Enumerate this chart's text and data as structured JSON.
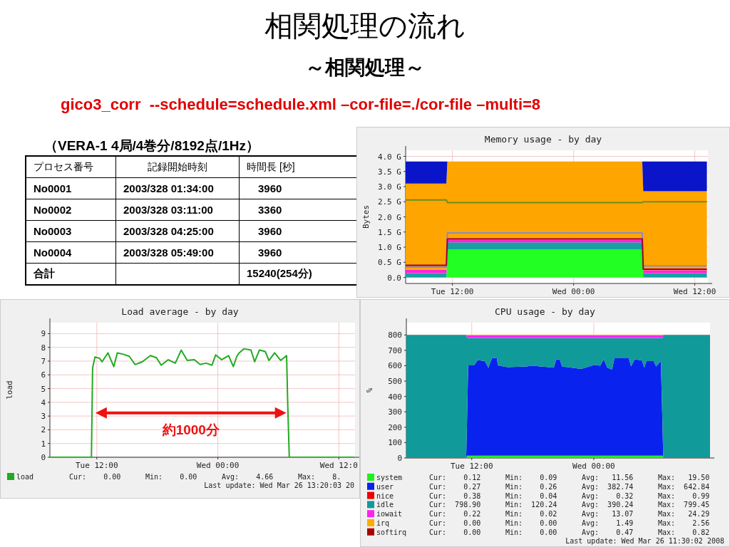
{
  "chart_data": [
    {
      "type": "other",
      "title": "相関処理の流れ",
      "subtitle": "～相関処理～",
      "annotations": [
        "gico3_corr  --schedule=schedule.xml –cor-file=./cor-file –multi=8",
        "（VERA-1 4局/4巻分/8192点/1Hz）",
        "プロセス番号",
        "記録開始時刻",
        "時間長 [秒]",
        "No0001",
        "2003/328 01:34:00",
        "3960",
        "No0002",
        "2003/328 03:11:00",
        "3360",
        "No0003",
        "2003/328 04:25:00",
        "3960",
        "No0004",
        "2003/328 05:49:00",
        "3960",
        "合計",
        "15240(254分)"
      ]
    },
    {
      "type": "area",
      "stacked": true,
      "title": "Memory usage - by day",
      "ylabel": "Bytes",
      "grid": true,
      "x": [
        "2008-03-25T07:22",
        "2008-03-25T11:24",
        "2008-03-25T11:30",
        "2008-03-26T06:48",
        "2008-03-26T06:54",
        "2008-03-26T13:12"
      ],
      "xlim": [
        "2008-03-25T07:22",
        "2008-03-26T13:18"
      ],
      "xticks": [
        {
          "value": "2008-03-25T12:00",
          "label": "Tue 12:00"
        },
        {
          "value": "2008-03-26T00:00",
          "label": "Wed 00:00"
        },
        {
          "value": "2008-03-26T12:00",
          "label": "Wed 12:00"
        }
      ],
      "ylim": [
        -0.2,
        4.2
      ],
      "yticks": [
        {
          "value": 0,
          "label": "0.0"
        },
        {
          "value": 0.5,
          "label": "0.5 G"
        },
        {
          "value": 1,
          "label": "1.0 G"
        },
        {
          "value": 1.5,
          "label": "1.5 G"
        },
        {
          "value": 2,
          "label": "2.0 G"
        },
        {
          "value": 2.5,
          "label": "2.5 G"
        },
        {
          "value": 3,
          "label": "3.0 G"
        },
        {
          "value": 3.5,
          "label": "3.5 G"
        },
        {
          "value": 4,
          "label": "4.0 G"
        }
      ],
      "series": [
        {
          "color": "#22ff22",
          "values": [
            0,
            0,
            0.93,
            0.93,
            0,
            0
          ]
        },
        {
          "color": "#17a0a0",
          "values": [
            0.14,
            0.14,
            0.23,
            0.23,
            0.14,
            0.14
          ]
        },
        {
          "color": "#ff22dd",
          "values": [
            0.12,
            0.12,
            0.09,
            0.09,
            0.1,
            0.1
          ]
        },
        {
          "color": "#ffa500",
          "values": [
            2.84,
            2.84,
            2.58,
            2.58,
            2.61,
            2.61
          ]
        },
        {
          "color": "#0a14c8",
          "values": [
            0.73,
            0.73,
            0,
            0,
            0.98,
            0.98
          ]
        },
        {
          "type": "line",
          "color": "#8c8cc0",
          "values": [
            0.34,
            0.34,
            1.47,
            1.47,
            0.38,
            0.38
          ]
        },
        {
          "type": "line",
          "color": "#6b8e23",
          "values": [
            2.56,
            2.56,
            2.47,
            2.47,
            2.5,
            2.5
          ]
        },
        {
          "type": "line",
          "color": "#a00030",
          "values": [
            0.4,
            0.4,
            1.27,
            1.27,
            0.27,
            0.27
          ]
        }
      ]
    },
    {
      "type": "line",
      "title": "Load average - by day",
      "ylabel": "load",
      "grid": true,
      "legend": "bottom",
      "xlim": [
        "2008-03-25T07:21",
        "2008-03-26T13:36"
      ],
      "xticks": [
        {
          "value": "2008-03-25T12:00",
          "label": "Tue 12:00"
        },
        {
          "value": "2008-03-26T00:00",
          "label": "Wed 00:00"
        },
        {
          "value": "2008-03-26T12:00",
          "label": "Wed 12:0"
        }
      ],
      "ylim": [
        0,
        9.8
      ],
      "yticks": [
        0,
        1,
        2,
        3,
        4,
        5,
        6,
        7,
        8,
        9
      ],
      "series": [
        {
          "name": "load",
          "color": "#22aa22",
          "x": [
            "2008-03-25T07:22",
            "2008-03-25T11:28",
            "2008-03-25T11:35",
            "2008-03-25T11:49",
            "2008-03-25T12:17",
            "2008-03-25T12:31",
            "2008-03-25T13:06",
            "2008-03-25T13:41",
            "2008-03-25T14:02",
            "2008-03-25T14:38",
            "2008-03-25T15:13",
            "2008-03-25T15:48",
            "2008-03-25T16:30",
            "2008-03-25T17:19",
            "2008-03-25T17:55",
            "2008-03-25T18:23",
            "2008-03-25T19:05",
            "2008-03-25T19:47",
            "2008-03-25T20:22",
            "2008-03-25T20:58",
            "2008-03-25T21:40",
            "2008-03-25T22:15",
            "2008-03-25T22:50",
            "2008-03-25T23:25",
            "2008-03-25T23:47",
            "2008-03-26T00:22",
            "2008-03-26T01:04",
            "2008-03-26T01:32",
            "2008-03-26T01:53",
            "2008-03-26T02:07",
            "2008-03-26T02:35",
            "2008-03-26T03:17",
            "2008-03-26T03:39",
            "2008-03-26T04:07",
            "2008-03-26T04:42",
            "2008-03-26T05:04",
            "2008-03-26T05:38",
            "2008-03-26T06:14",
            "2008-03-26T06:49",
            "2008-03-26T06:56",
            "2008-03-26T07:05",
            "2008-03-26T13:30"
          ],
          "values": [
            0,
            0,
            6.5,
            7.3,
            7.2,
            6.95,
            7.6,
            6.6,
            7.6,
            7.5,
            7.35,
            6.75,
            6.95,
            7.4,
            7.25,
            6.7,
            7.1,
            6.85,
            7.8,
            7.05,
            7.1,
            6.75,
            6.85,
            6.7,
            7.45,
            7.1,
            7.4,
            6.6,
            7.35,
            7.6,
            7.9,
            7.8,
            6.95,
            7.8,
            7.7,
            7.05,
            7.6,
            7.05,
            7.4,
            3.75,
            0,
            0
          ]
        }
      ],
      "annotations": [
        "約1000分",
        "Cur:    0.00",
        "Min:    0.00",
        "Avg:    4.66",
        "Max:    8.",
        "Last update: Wed Mar 26 13:20:03 20"
      ]
    },
    {
      "type": "area",
      "stacked": true,
      "title": "CPU usage - by day",
      "ylabel": "%",
      "grid": true,
      "legend": "bottom",
      "x": [
        "2008-03-25T05:34",
        "2008-03-25T11:27",
        "2008-03-25T11:32",
        "2008-03-25T11:39",
        "2008-03-25T12:14",
        "2008-03-25T12:35",
        "2008-03-25T13:17",
        "2008-03-25T13:38",
        "2008-03-25T13:59",
        "2008-03-25T14:28",
        "2008-03-25T14:34",
        "2008-03-25T15:31",
        "2008-03-25T17:23",
        "2008-03-25T17:58",
        "2008-03-25T20:04",
        "2008-03-25T20:18",
        "2008-03-25T20:39",
        "2008-03-25T20:53",
        "2008-03-25T22:46",
        "2008-03-26T00:03",
        "2008-03-26T00:38",
        "2008-03-26T00:59",
        "2008-03-26T01:20",
        "2008-03-26T01:48",
        "2008-03-26T02:02",
        "2008-03-26T03:26",
        "2008-03-26T03:40",
        "2008-03-26T04:01",
        "2008-03-26T04:44",
        "2008-03-26T04:58",
        "2008-03-26T05:11",
        "2008-03-26T05:53",
        "2008-03-26T06:08",
        "2008-03-26T06:36",
        "2008-03-26T06:46",
        "2008-03-26T06:50",
        "2008-03-26T11:26"
      ],
      "xlim": [
        "2008-03-25T05:34",
        "2008-03-26T11:26"
      ],
      "xticks": [
        {
          "value": "2008-03-25T12:00",
          "label": "Tue 12:00"
        },
        {
          "value": "2008-03-26T00:00",
          "label": "Wed 00:00"
        }
      ],
      "ylim": [
        0,
        880
      ],
      "yticks": [
        0,
        100,
        200,
        300,
        400,
        500,
        600,
        700,
        800
      ],
      "series": [
        {
          "name": "system",
          "color": "#22ee22",
          "values": [
            0,
            0,
            15,
            15,
            15,
            15,
            15,
            15,
            15,
            15,
            15,
            15,
            15,
            15,
            15,
            15,
            15,
            15,
            15,
            15,
            15,
            15,
            15,
            15,
            15,
            15,
            15,
            15,
            15,
            15,
            15,
            15,
            15,
            15,
            15,
            0,
            0
          ]
        },
        {
          "name": "user",
          "color": "#0a22ee",
          "values": [
            0,
            0,
            220,
            587,
            587,
            622,
            615,
            572,
            634,
            637,
            587,
            575,
            580,
            585,
            572,
            626,
            626,
            580,
            564,
            591,
            585,
            626,
            572,
            560,
            634,
            634,
            580,
            626,
            619,
            572,
            615,
            615,
            580,
            615,
            180,
            0,
            0
          ]
        },
        {
          "name": "nice",
          "color": "#ee0000",
          "values": [
            null,
            null,
            null,
            null,
            null,
            null,
            null,
            null,
            null,
            null,
            null,
            null,
            null,
            null,
            null,
            null,
            null,
            null,
            null,
            null,
            null,
            null,
            null,
            null,
            null,
            null,
            null,
            null,
            null,
            null,
            null,
            null,
            null,
            null,
            null,
            null,
            null
          ]
        },
        {
          "name": "idle",
          "color": "#119a9a",
          "values": [
            800,
            800,
            545,
            178,
            178,
            143,
            150,
            193,
            131,
            128,
            178,
            190,
            185,
            180,
            193,
            139,
            139,
            185,
            201,
            174,
            180,
            139,
            193,
            205,
            131,
            131,
            185,
            139,
            146,
            193,
            150,
            150,
            185,
            150,
            585,
            800,
            800
          ]
        },
        {
          "name": "iowait",
          "color": "#ff22ee",
          "values": [
            0,
            0,
            18,
            18,
            18,
            18,
            18,
            18,
            18,
            18,
            18,
            18,
            18,
            18,
            18,
            18,
            18,
            18,
            18,
            18,
            18,
            18,
            18,
            18,
            18,
            18,
            18,
            18,
            18,
            18,
            18,
            18,
            18,
            18,
            18,
            0,
            0
          ]
        },
        {
          "name": "irq",
          "color": "#ffaa00",
          "values": [
            0,
            0,
            2,
            2,
            2,
            2,
            2,
            2,
            2,
            2,
            2,
            2,
            2,
            2,
            2,
            2,
            2,
            2,
            2,
            2,
            2,
            2,
            2,
            2,
            2,
            2,
            2,
            2,
            2,
            2,
            2,
            2,
            2,
            2,
            2,
            0,
            0
          ]
        },
        {
          "name": "softirq",
          "color": "#aa0000",
          "values": [
            null,
            null,
            null,
            null,
            null,
            null,
            null,
            null,
            null,
            null,
            null,
            null,
            null,
            null,
            null,
            null,
            null,
            null,
            null,
            null,
            null,
            null,
            null,
            null,
            null,
            null,
            null,
            null,
            null,
            null,
            null,
            null,
            null,
            null,
            null,
            null,
            null
          ]
        }
      ],
      "annotations": [
        "Cur:    0.12",
        "Min:    0.09",
        "Avg:   11.56",
        "Max:   19.50",
        "Cur:    0.27",
        "Min:    0.26",
        "Avg:  382.74",
        "Max:  642.84",
        "Cur:    0.38",
        "Min:    0.04",
        "Avg:    0.32",
        "Max:    0.99",
        "Cur:  798.90",
        "Min:  120.24",
        "Avg:  390.24",
        "Max:  799.45",
        "Cur:    0.22",
        "Min:    0.02",
        "Avg:   13.07",
        "Max:   24.29",
        "Cur:    0.00",
        "Min:    0.00",
        "Avg:    1.49",
        "Max:    2.56",
        "Cur:    0.00",
        "Min:    0.00",
        "Avg:    0.47",
        "Max:    0.82",
        "Last update: Wed Mar 26 11:30:02 2008"
      ]
    }
  ]
}
